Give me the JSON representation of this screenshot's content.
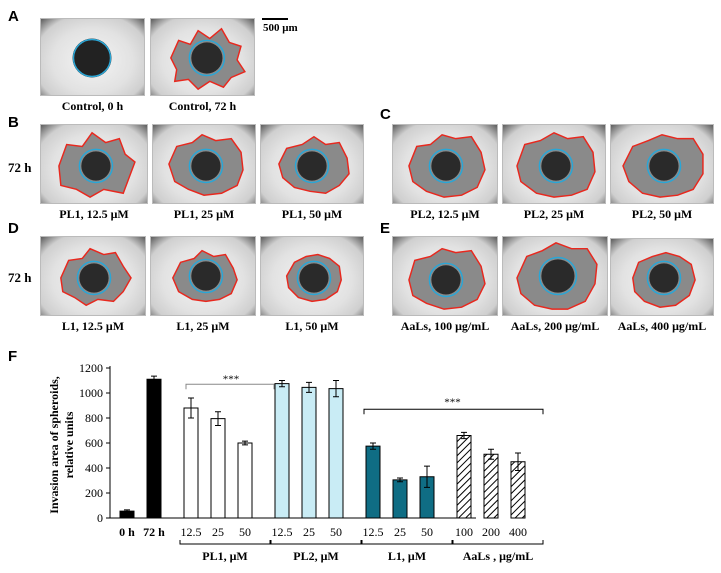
{
  "panels": {
    "A": {
      "letter": "A",
      "captions": [
        "Control, 0 h",
        "Control, 72 h"
      ]
    },
    "B": {
      "letter": "B",
      "time": "72 h",
      "captions": [
        "PL1, 12.5 μM",
        "PL1, 25 μM",
        "PL1, 50 μM"
      ]
    },
    "C": {
      "letter": "C",
      "captions": [
        "PL2, 12.5 μM",
        "PL2, 25 μM",
        "PL2, 50 μM"
      ]
    },
    "D": {
      "letter": "D",
      "time": "72 h",
      "captions": [
        "L1, 12.5 μM",
        "L1, 25 μM",
        "L1, 50 μM"
      ]
    },
    "E": {
      "letter": "E",
      "captions": [
        "AaLs, 100 μg/mL",
        "AaLs, 200 μg/mL",
        "AaLs, 400 μg/mL"
      ]
    },
    "F": {
      "letter": "F"
    }
  },
  "scalebar": {
    "label": "500 μm"
  },
  "colors": {
    "outline_invasion": "#e8281e",
    "outline_core": "#2aa6d6",
    "black": "#000000",
    "light_blue": "#c9ecf5",
    "teal": "#0f6d84",
    "white": "#ffffff"
  },
  "chart_data": {
    "type": "bar",
    "ylabel": "Invasion area of spheroids, relative units",
    "ylim": [
      0,
      1200
    ],
    "yticks": [
      0,
      200,
      400,
      600,
      800,
      1000,
      1200
    ],
    "groups": [
      {
        "name": "",
        "fill": "black",
        "bars": [
          {
            "label": "0 h",
            "value": 55,
            "err": 10
          },
          {
            "label": "72 h",
            "value": 1110,
            "err": 25
          }
        ]
      },
      {
        "name": "PL1, μM",
        "fill": "white",
        "bars": [
          {
            "label": "12.5",
            "value": 880,
            "err": 80
          },
          {
            "label": "25",
            "value": 795,
            "err": 55
          },
          {
            "label": "50",
            "value": 600,
            "err": 15
          }
        ]
      },
      {
        "name": "PL2, μM",
        "fill": "lightblue",
        "bars": [
          {
            "label": "12.5",
            "value": 1075,
            "err": 25
          },
          {
            "label": "25",
            "value": 1045,
            "err": 40
          },
          {
            "label": "50",
            "value": 1035,
            "err": 65
          }
        ]
      },
      {
        "name": "L1, μM",
        "fill": "teal",
        "bars": [
          {
            "label": "12.5",
            "value": 575,
            "err": 25
          },
          {
            "label": "25",
            "value": 305,
            "err": 15
          },
          {
            "label": "50",
            "value": 330,
            "err": 85
          }
        ]
      },
      {
        "name": "AaLs , μg/mL",
        "fill": "hatched",
        "bars": [
          {
            "label": "100",
            "value": 660,
            "err": 25
          },
          {
            "label": "200",
            "value": 510,
            "err": 40
          },
          {
            "label": "400",
            "value": 450,
            "err": 70
          }
        ]
      }
    ],
    "annotations": [
      "***",
      "***"
    ]
  }
}
